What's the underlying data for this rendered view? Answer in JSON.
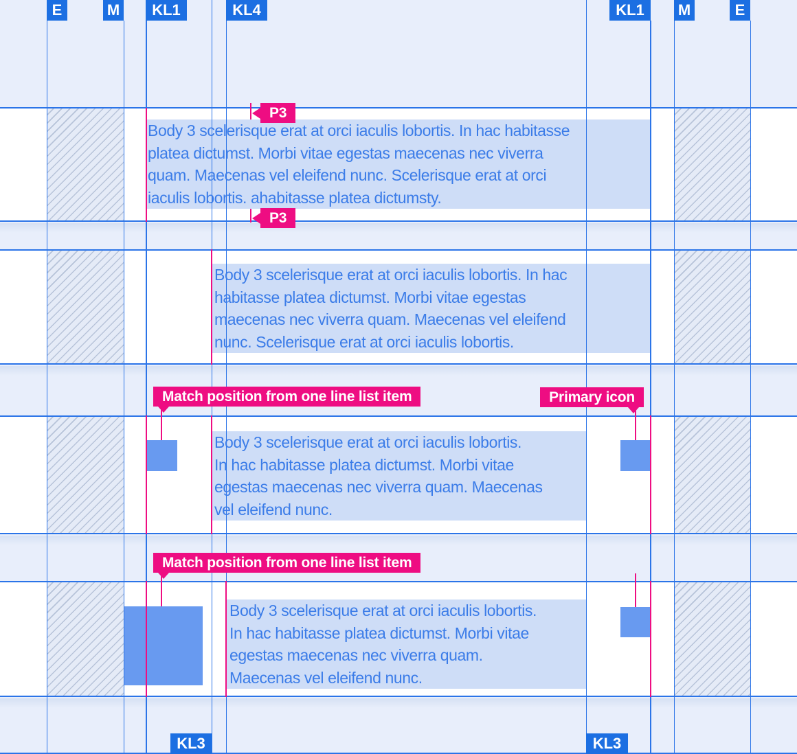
{
  "colors": {
    "background": "#e8eefb",
    "row_background": "#ffffff",
    "keyline_blue": "#2b74e8",
    "keyline_label_blue": "#1c6fe2",
    "annotation_pink": "#ee0d82",
    "body_text_blue": "#3b7ce8",
    "text_highlight_blue": "#ceddf7",
    "icon_placeholder_blue": "#689af0",
    "hatch_fill": "#e5ebf7",
    "hatch_stroke": "#b7c3d9"
  },
  "keylines": {
    "top": [
      {
        "name": "E"
      },
      {
        "name": "M"
      },
      {
        "name": "KL1"
      },
      {
        "name": "KL4"
      },
      {
        "name": "KL1"
      },
      {
        "name": "M"
      },
      {
        "name": "E"
      }
    ],
    "bottom": [
      {
        "name": "KL3"
      },
      {
        "name": "KL3"
      }
    ]
  },
  "annotations": {
    "p3_top": {
      "text": "P3"
    },
    "p3_bottom": {
      "text": "P3"
    },
    "match_top": {
      "text": "Match position from one line list item"
    },
    "match_bottom": {
      "text": "Match position from one line list item"
    },
    "primary_icon": {
      "text": "Primary icon"
    }
  },
  "rows": [
    {
      "type": "text-only-kl1",
      "lines": [
        "Body 3 scelerisque erat at orci iaculis lobortis. In hac habitasse",
        "platea dictumst. Morbi vitae egestas maecenas nec viverra",
        "quam. Maecenas vel eleifend nunc. Scelerisque erat at orci",
        "iaculis lobortis. ahabitasse platea dictumsty."
      ]
    },
    {
      "type": "text-only-kl3",
      "lines": [
        "Body 3 scelerisque erat at orci iaculis lobortis. In hac",
        "habitasse platea dictumst. Morbi vitae egestas",
        "maecenas nec viverra quam. Maecenas vel eleifend",
        "nunc. Scelerisque erat at orci iaculis lobortis."
      ]
    },
    {
      "type": "icon-text-icon",
      "lines": [
        "Body 3 scelerisque erat at orci iaculis lobortis.",
        "In hac habitasse platea dictumst. Morbi vitae",
        "egestas maecenas nec viverra quam. Maecenas",
        "vel eleifend nunc."
      ]
    },
    {
      "type": "avatar-text-icon",
      "lines": [
        "Body 3 scelerisque erat at orci iaculis lobortis.",
        "In hac habitasse platea dictumst. Morbi vitae",
        "egestas maecenas nec viverra quam.",
        "Maecenas vel eleifend nunc."
      ]
    }
  ]
}
